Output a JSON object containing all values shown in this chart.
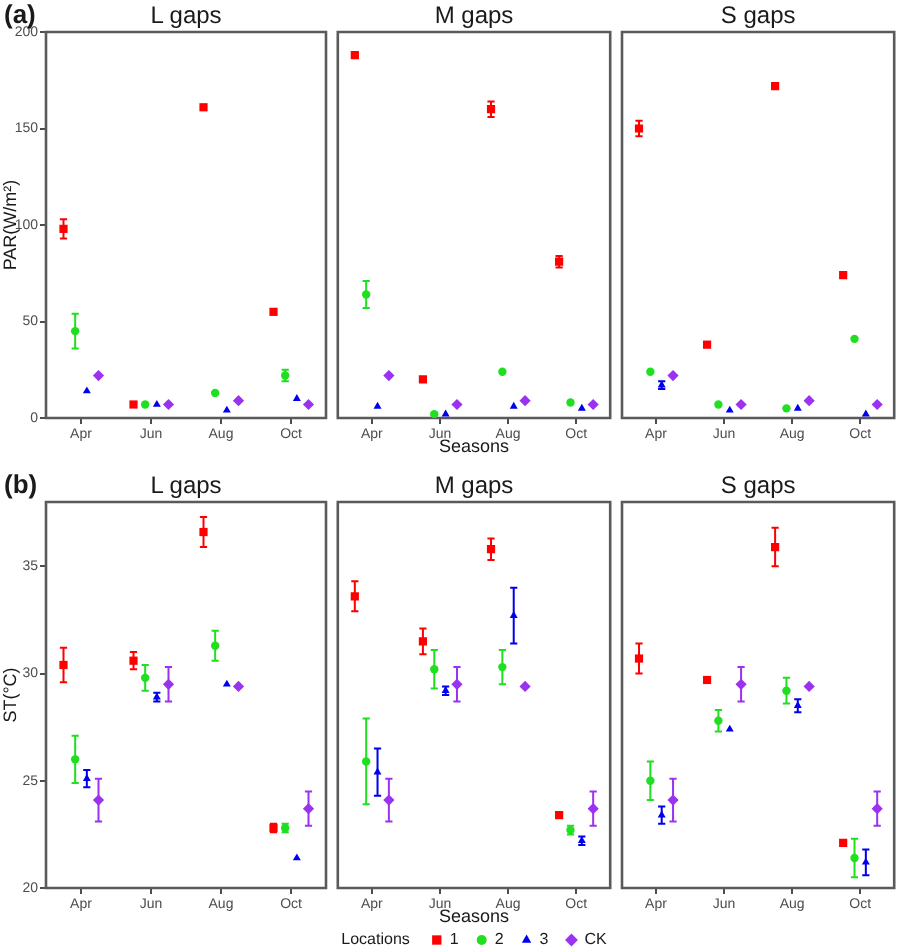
{
  "chart_data": [
    {
      "type": "scatter",
      "title": "L gaps",
      "ylabel": "PAR(W/m²)",
      "annotations": [
        "(a)"
      ],
      "categories": [
        "Apr",
        "Jun",
        "Aug",
        "Oct"
      ],
      "ylim": [
        0,
        200
      ],
      "yticks": [
        0,
        50,
        100,
        150,
        200
      ],
      "series": [
        {
          "color": "#ff0000",
          "marker": "square",
          "values": [
            98,
            7,
            161,
            55
          ],
          "errors": [
            5,
            null,
            null,
            null
          ]
        },
        {
          "color": "#1fe01f",
          "marker": "circle",
          "values": [
            45,
            7,
            13,
            22
          ],
          "errors": [
            9,
            null,
            null,
            3
          ]
        },
        {
          "color": "#0000ee",
          "marker": "triangle",
          "values": [
            14,
            7,
            4,
            10
          ]
        },
        {
          "color": "#9a32f0",
          "marker": "diamond",
          "values": [
            22,
            7,
            9,
            7
          ]
        }
      ]
    },
    {
      "type": "scatter",
      "title": "M gaps",
      "xlabel": "Seasons",
      "tick_labels": "x",
      "categories": [
        "Apr",
        "Jun",
        "Aug",
        "Oct"
      ],
      "ylim": [
        0,
        200
      ],
      "series": [
        {
          "color": "#ff0000",
          "marker": "square",
          "values": [
            188,
            20,
            160,
            81
          ],
          "errors": [
            null,
            null,
            4,
            3
          ]
        },
        {
          "color": "#1fe01f",
          "marker": "circle",
          "values": [
            64,
            2,
            24,
            8
          ],
          "errors": [
            7,
            null,
            null,
            null
          ]
        },
        {
          "color": "#0000ee",
          "marker": "triangle",
          "values": [
            6,
            2,
            6,
            5
          ]
        },
        {
          "color": "#9a32f0",
          "marker": "diamond",
          "values": [
            22,
            7,
            9,
            7
          ]
        }
      ]
    },
    {
      "type": "scatter",
      "title": "S gaps",
      "tick_labels": "x",
      "categories": [
        "Apr",
        "Jun",
        "Aug",
        "Oct"
      ],
      "ylim": [
        0,
        200
      ],
      "series": [
        {
          "color": "#ff0000",
          "marker": "square",
          "values": [
            150,
            38,
            172,
            74
          ],
          "errors": [
            4,
            null,
            null,
            null
          ]
        },
        {
          "color": "#1fe01f",
          "marker": "circle",
          "values": [
            24,
            7,
            5,
            41
          ]
        },
        {
          "color": "#0000ee",
          "marker": "triangle",
          "values": [
            17,
            4,
            5,
            2
          ],
          "errors": [
            2,
            null,
            null,
            null
          ]
        },
        {
          "color": "#9a32f0",
          "marker": "diamond",
          "values": [
            22,
            7,
            9,
            7
          ]
        }
      ]
    },
    {
      "type": "scatter",
      "title": "L gaps",
      "ylabel": "ST(°C)",
      "annotations": [
        "(b)"
      ],
      "categories": [
        "Apr",
        "Jun",
        "Aug",
        "Oct"
      ],
      "ylim": [
        20,
        38
      ],
      "yticks": [
        20,
        25,
        30,
        35
      ],
      "series": [
        {
          "color": "#ff0000",
          "marker": "square",
          "values": [
            30.4,
            30.6,
            36.6,
            22.8
          ],
          "errors": [
            0.8,
            0.4,
            0.7,
            0.2
          ]
        },
        {
          "color": "#1fe01f",
          "marker": "circle",
          "values": [
            26.0,
            29.8,
            31.3,
            22.8
          ],
          "errors": [
            1.1,
            0.6,
            0.7,
            0.2
          ]
        },
        {
          "color": "#0000ee",
          "marker": "triangle",
          "values": [
            25.1,
            28.9,
            29.5,
            21.4
          ],
          "errors": [
            0.4,
            0.2,
            null,
            null
          ]
        },
        {
          "color": "#9a32f0",
          "marker": "diamond",
          "values": [
            24.1,
            29.5,
            29.4,
            23.7
          ],
          "errors": [
            1.0,
            0.8,
            null,
            0.8
          ]
        }
      ]
    },
    {
      "type": "scatter",
      "title": "M gaps",
      "xlabel": "Seasons",
      "tick_labels": "x",
      "categories": [
        "Apr",
        "Jun",
        "Aug",
        "Oct"
      ],
      "ylim": [
        20,
        38
      ],
      "legend": "bottom",
      "legend_title": "Locations",
      "series": [
        {
          "name": "1",
          "color": "#ff0000",
          "marker": "square",
          "values": [
            33.6,
            31.5,
            35.8,
            23.4
          ],
          "errors": [
            0.7,
            0.6,
            0.5,
            null
          ]
        },
        {
          "name": "2",
          "color": "#1fe01f",
          "marker": "circle",
          "values": [
            25.9,
            30.2,
            30.3,
            22.7
          ],
          "errors": [
            2.0,
            0.9,
            0.8,
            0.2
          ]
        },
        {
          "name": "3",
          "color": "#0000ee",
          "marker": "triangle",
          "values": [
            25.4,
            29.2,
            32.7,
            22.2
          ],
          "errors": [
            1.1,
            0.2,
            1.3,
            0.2
          ]
        },
        {
          "name": "CK",
          "color": "#9a32f0",
          "marker": "diamond",
          "values": [
            24.1,
            29.5,
            29.4,
            23.7
          ],
          "errors": [
            1.0,
            0.8,
            null,
            0.8
          ]
        }
      ]
    },
    {
      "type": "scatter",
      "title": "S gaps",
      "tick_labels": "x",
      "categories": [
        "Apr",
        "Jun",
        "Aug",
        "Oct"
      ],
      "ylim": [
        20,
        38
      ],
      "series": [
        {
          "color": "#ff0000",
          "marker": "square",
          "values": [
            30.7,
            29.7,
            35.9,
            22.1
          ],
          "errors": [
            0.7,
            null,
            0.9,
            null
          ]
        },
        {
          "color": "#1fe01f",
          "marker": "circle",
          "values": [
            25.0,
            27.8,
            29.2,
            21.4
          ],
          "errors": [
            0.9,
            0.5,
            0.6,
            0.9
          ]
        },
        {
          "color": "#0000ee",
          "marker": "triangle",
          "values": [
            23.4,
            27.4,
            28.5,
            21.2
          ],
          "errors": [
            0.4,
            null,
            0.3,
            0.6
          ]
        },
        {
          "color": "#9a32f0",
          "marker": "diamond",
          "values": [
            24.1,
            29.5,
            29.4,
            23.7
          ],
          "errors": [
            1.0,
            0.8,
            null,
            0.8
          ]
        }
      ]
    }
  ]
}
